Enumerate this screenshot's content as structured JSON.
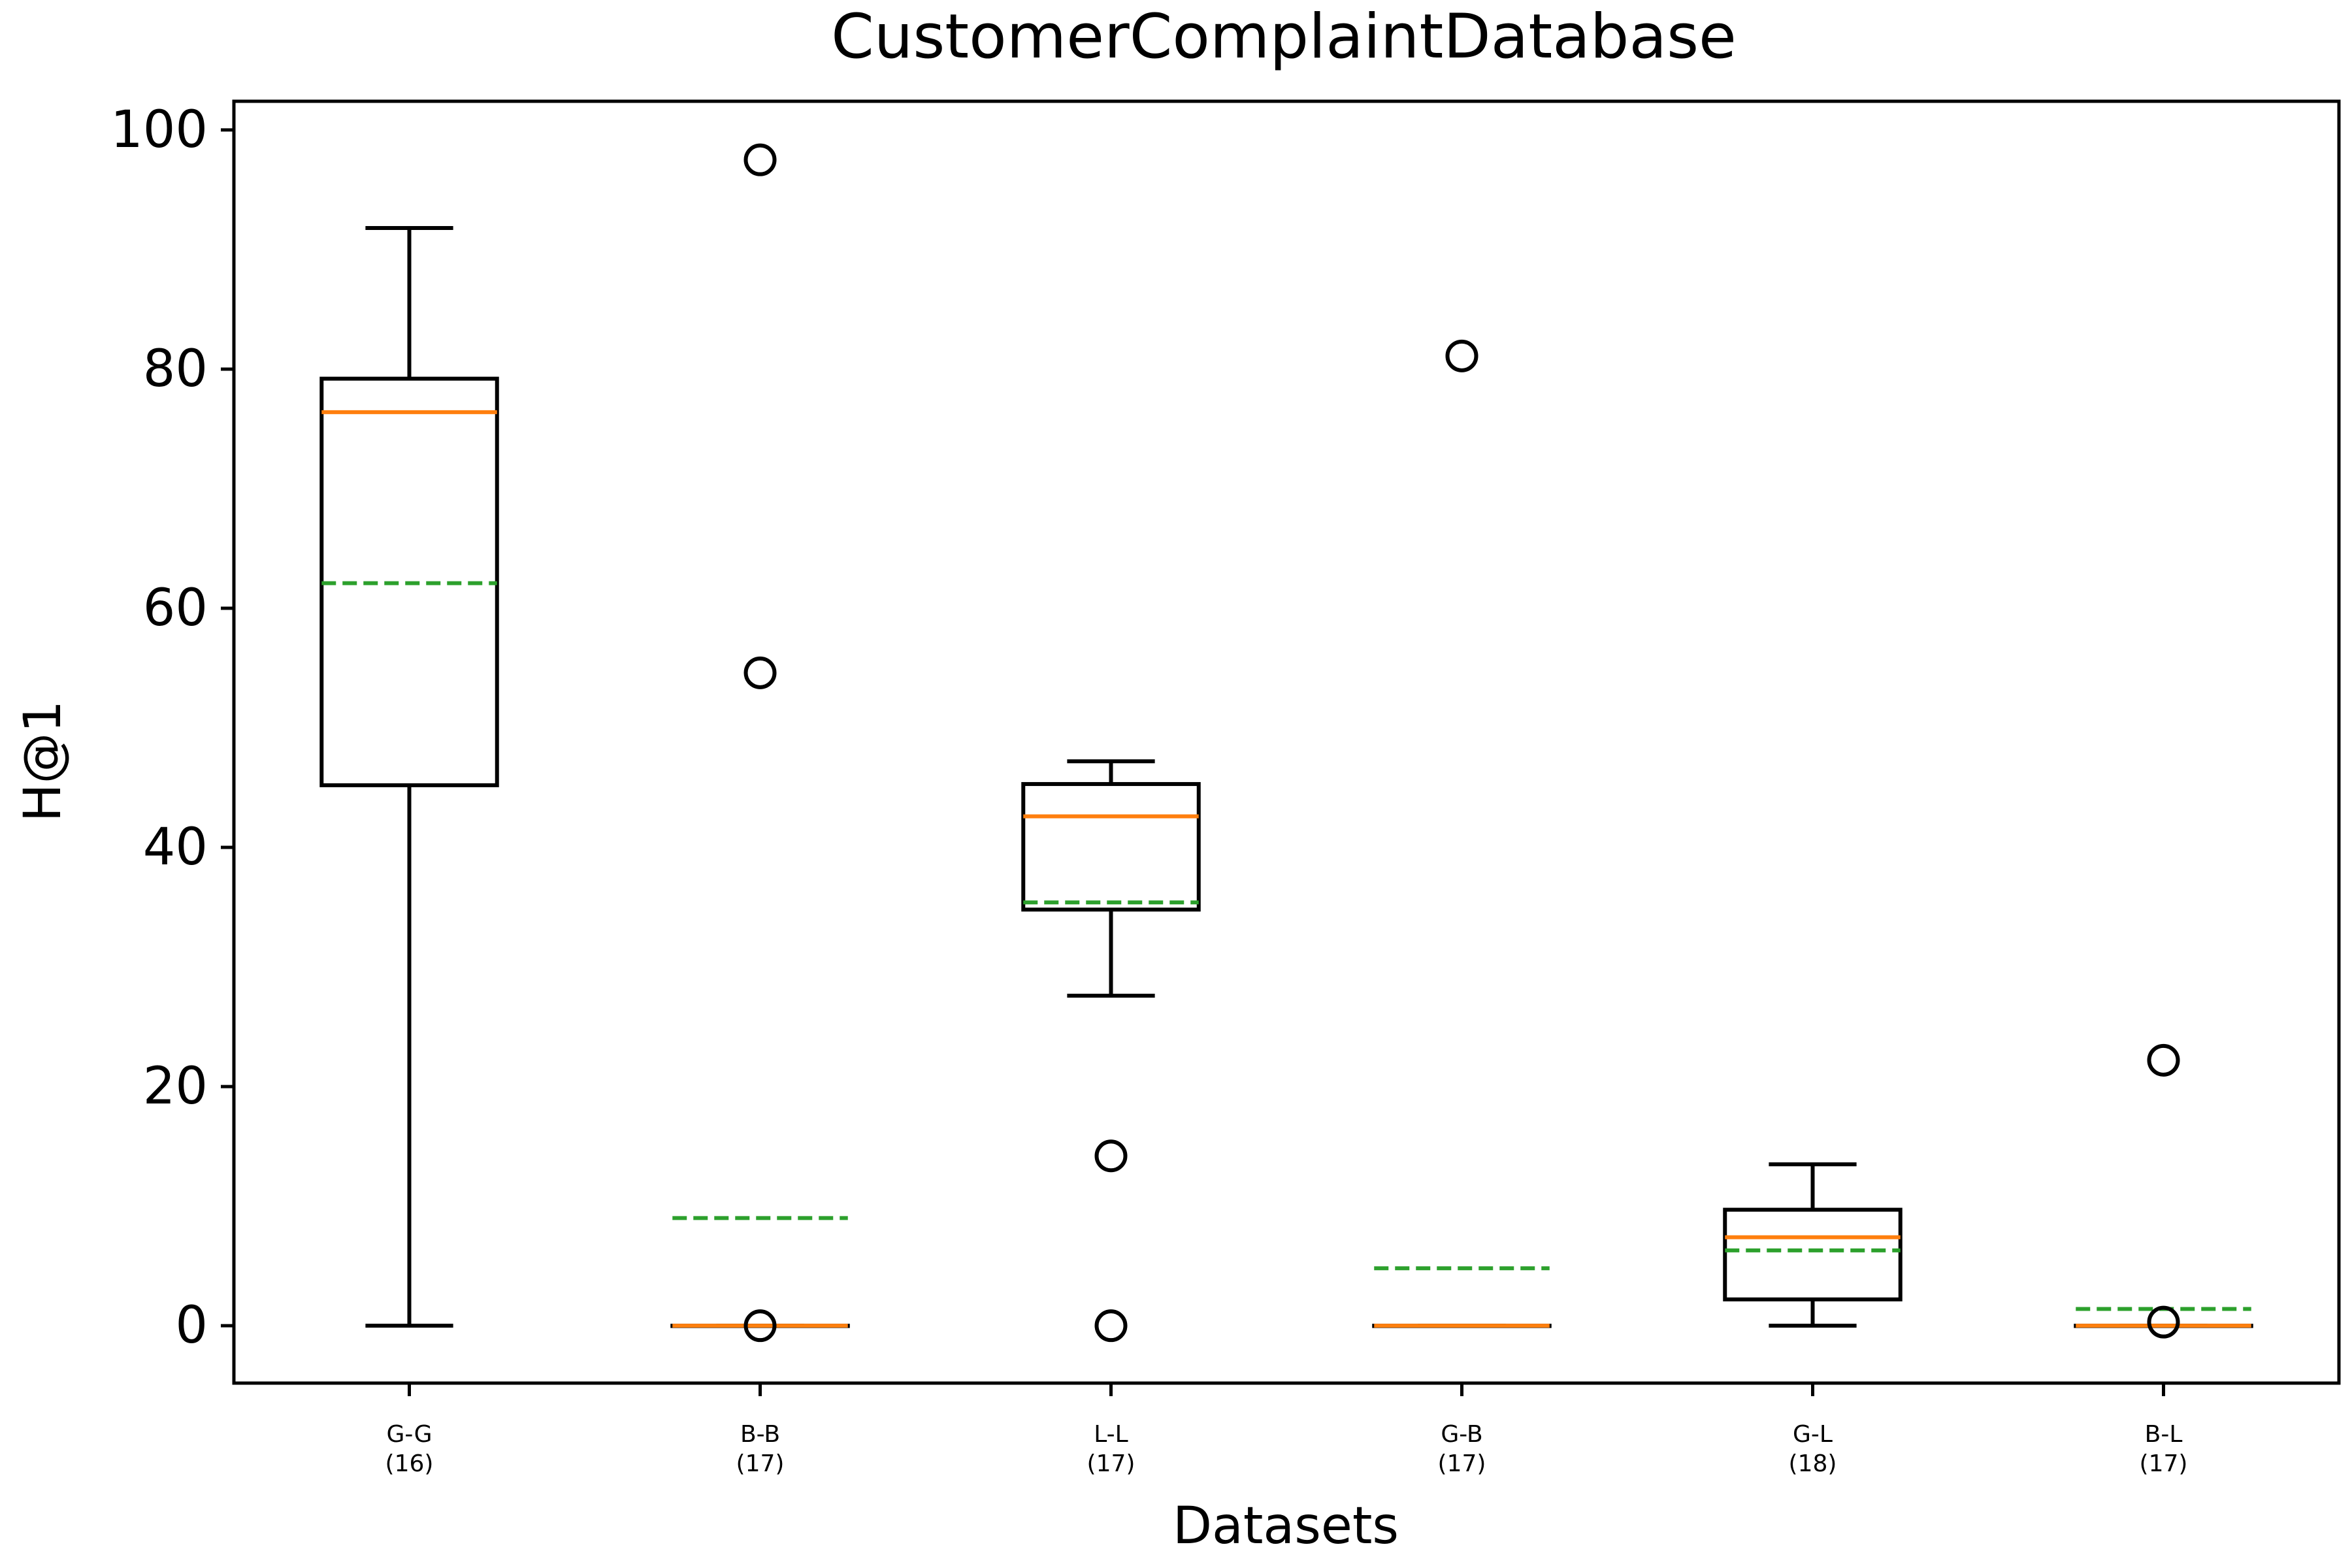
{
  "chart_data": {
    "type": "boxplot",
    "title": "CustomerComplaintDatabase",
    "xlabel": "Datasets",
    "ylabel": "H@1",
    "ylim": [
      -4.8,
      102.4
    ],
    "yticks": [
      0,
      20,
      40,
      60,
      80,
      100
    ],
    "grid": false,
    "categories": [
      {
        "name": "G-G",
        "count": "(16)"
      },
      {
        "name": "B-B",
        "count": "(17)"
      },
      {
        "name": "L-L",
        "count": "(17)"
      },
      {
        "name": "G-B",
        "count": "(17)"
      },
      {
        "name": "G-L",
        "count": "(18)"
      },
      {
        "name": "B-L",
        "count": "(17)"
      }
    ],
    "boxes": [
      {
        "whisker_low": 0,
        "q1": 45.2,
        "median": 76.4,
        "q3": 79.2,
        "whisker_high": 91.8,
        "mean": 62.1,
        "outliers": []
      },
      {
        "whisker_low": 0,
        "q1": 0,
        "median": 0,
        "q3": 0,
        "whisker_high": 0,
        "mean": 9.0,
        "outliers": [
          97.5,
          54.6,
          0
        ]
      },
      {
        "whisker_low": 27.6,
        "q1": 34.8,
        "median": 42.6,
        "q3": 45.3,
        "whisker_high": 47.2,
        "mean": 35.4,
        "outliers": [
          14.2,
          0
        ]
      },
      {
        "whisker_low": 0,
        "q1": 0,
        "median": 0,
        "q3": 0,
        "whisker_high": 0,
        "mean": 4.8,
        "outliers": [
          81.1
        ]
      },
      {
        "whisker_low": 0,
        "q1": 2.2,
        "median": 7.4,
        "q3": 9.7,
        "whisker_high": 13.5,
        "mean": 6.3,
        "outliers": []
      },
      {
        "whisker_low": 0,
        "q1": 0,
        "median": 0,
        "q3": 0,
        "whisker_high": 0,
        "mean": 1.4,
        "outliers": [
          22.2,
          0.3
        ]
      }
    ],
    "colors": {
      "box": "#000000",
      "median": "#ff7f0e",
      "mean": "#2ca02c",
      "outlier": "#000000"
    }
  }
}
